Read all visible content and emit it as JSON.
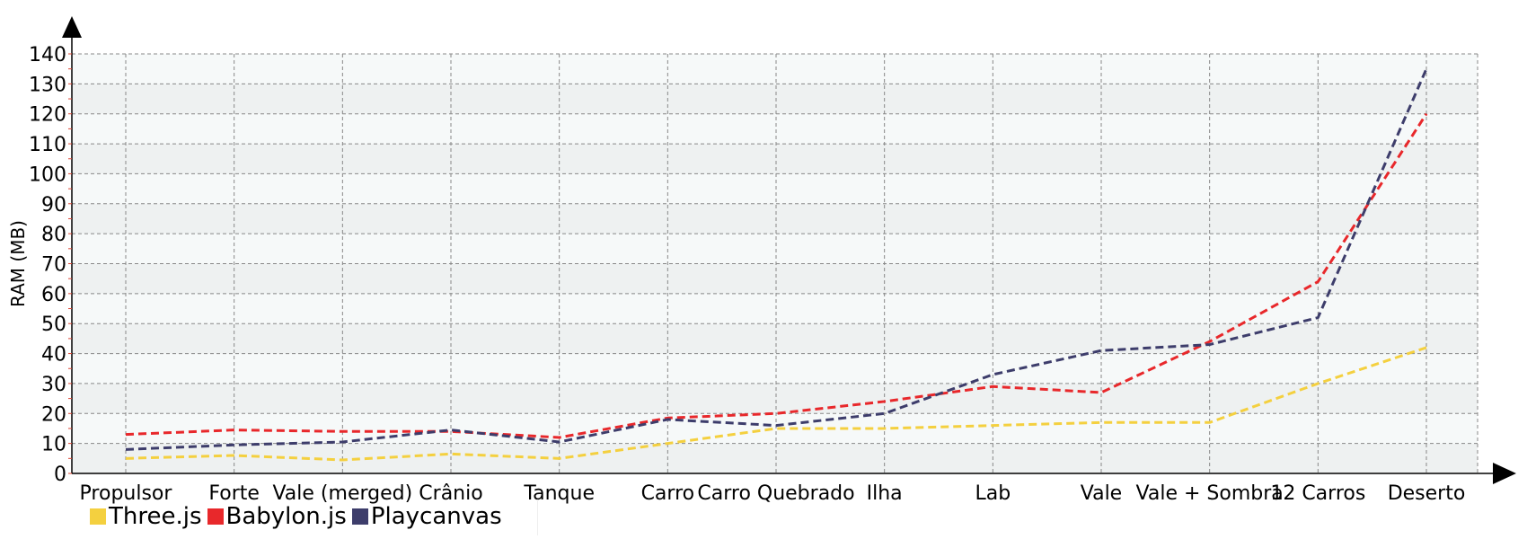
{
  "chart_data": {
    "type": "line",
    "ylabel": "RAM (MB)",
    "xlabel": "",
    "ylim": [
      0,
      140
    ],
    "yticks": [
      0,
      10,
      20,
      30,
      40,
      50,
      60,
      70,
      80,
      90,
      100,
      110,
      120,
      130,
      140
    ],
    "grid": true,
    "legend_position": "bottom-left",
    "categories": [
      "Propulsor",
      "Forte",
      "Vale (merged)",
      "Crânio",
      "Tanque",
      "Carro",
      "Carro Quebrado",
      "Ilha",
      "Lab",
      "Vale",
      "Vale + Sombra",
      "12 Carros",
      "Deserto"
    ],
    "series": [
      {
        "name": "Three.js",
        "color": "#f4d03f",
        "values": [
          5,
          6,
          4.5,
          6.5,
          5,
          10,
          15,
          15,
          16,
          17,
          17,
          30,
          42
        ]
      },
      {
        "name": "Babylon.js",
        "color": "#e8282b",
        "values": [
          13,
          14.5,
          14,
          14,
          12,
          18.5,
          20,
          24,
          29,
          27,
          44,
          64,
          120
        ]
      },
      {
        "name": "Playcanvas",
        "color": "#3d3d6b",
        "values": [
          8,
          9.5,
          10.5,
          14.5,
          10.5,
          18,
          16,
          20,
          33,
          41,
          43,
          52,
          135
        ]
      }
    ]
  }
}
